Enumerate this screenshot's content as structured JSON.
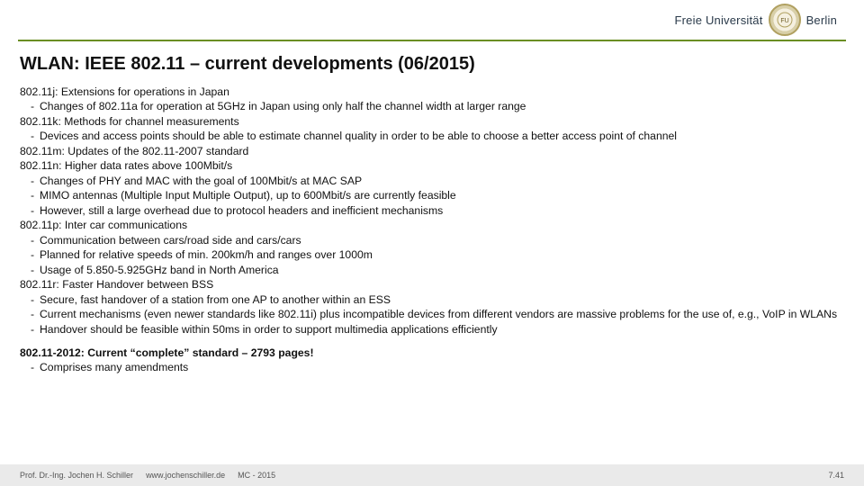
{
  "header": {
    "institution_name": "Freie Universität",
    "institution_city": "Berlin",
    "rule_color": "#6b8e23"
  },
  "title": "WLAN: IEEE 802.11 – current developments (06/2015)",
  "groups": [
    {
      "head": "802.11j: Extensions for operations in Japan",
      "bullets": [
        "Changes of 802.11a for operation at 5GHz in Japan using only half the channel width at larger range"
      ]
    },
    {
      "head": "802.11k: Methods for channel measurements",
      "bullets": [
        "Devices and access points should be able to estimate channel quality in order to be able to choose a better access point of channel"
      ]
    },
    {
      "head": "802.11m: Updates of the 802.11-2007 standard",
      "bullets": []
    },
    {
      "head": "802.11n: Higher data rates above 100Mbit/s",
      "bullets": [
        "Changes of PHY and MAC with the goal of 100Mbit/s at MAC SAP",
        "MIMO antennas (Multiple Input Multiple Output), up to 600Mbit/s are currently feasible",
        "However, still a large overhead due to protocol headers and inefficient mechanisms"
      ]
    },
    {
      "head": "802.11p: Inter car communications",
      "bullets": [
        "Communication between cars/road side and cars/cars",
        "Planned for relative speeds of min. 200km/h and ranges over 1000m",
        "Usage of 5.850-5.925GHz band in North America"
      ]
    },
    {
      "head": "802.11r: Faster Handover between BSS",
      "bullets": [
        "Secure, fast handover of a station from one AP to another within an ESS",
        "Current mechanisms (even newer standards like 802.11i) plus incompatible devices from different vendors are massive problems for the use of, e.g., VoIP in WLANs",
        "Handover should be feasible within 50ms in order to support multimedia applications efficiently"
      ]
    }
  ],
  "standard_block": {
    "head": "802.11-2012: Current “complete” standard – 2793 pages!",
    "bullets": [
      "Comprises many amendments"
    ]
  },
  "footer": {
    "author": "Prof. Dr.-Ing. Jochen H. Schiller",
    "url": "www.jochenschiller.de",
    "course": "MC - 2015",
    "page": "7.41"
  },
  "style": {
    "title_fontsize_pt": 20,
    "body_fontsize_pt": 12,
    "footer_fontsize_pt": 9,
    "text_color": "#111111",
    "footer_bg": "#eaeaea",
    "footer_text": "#555555",
    "page_bg": "#ffffff"
  }
}
